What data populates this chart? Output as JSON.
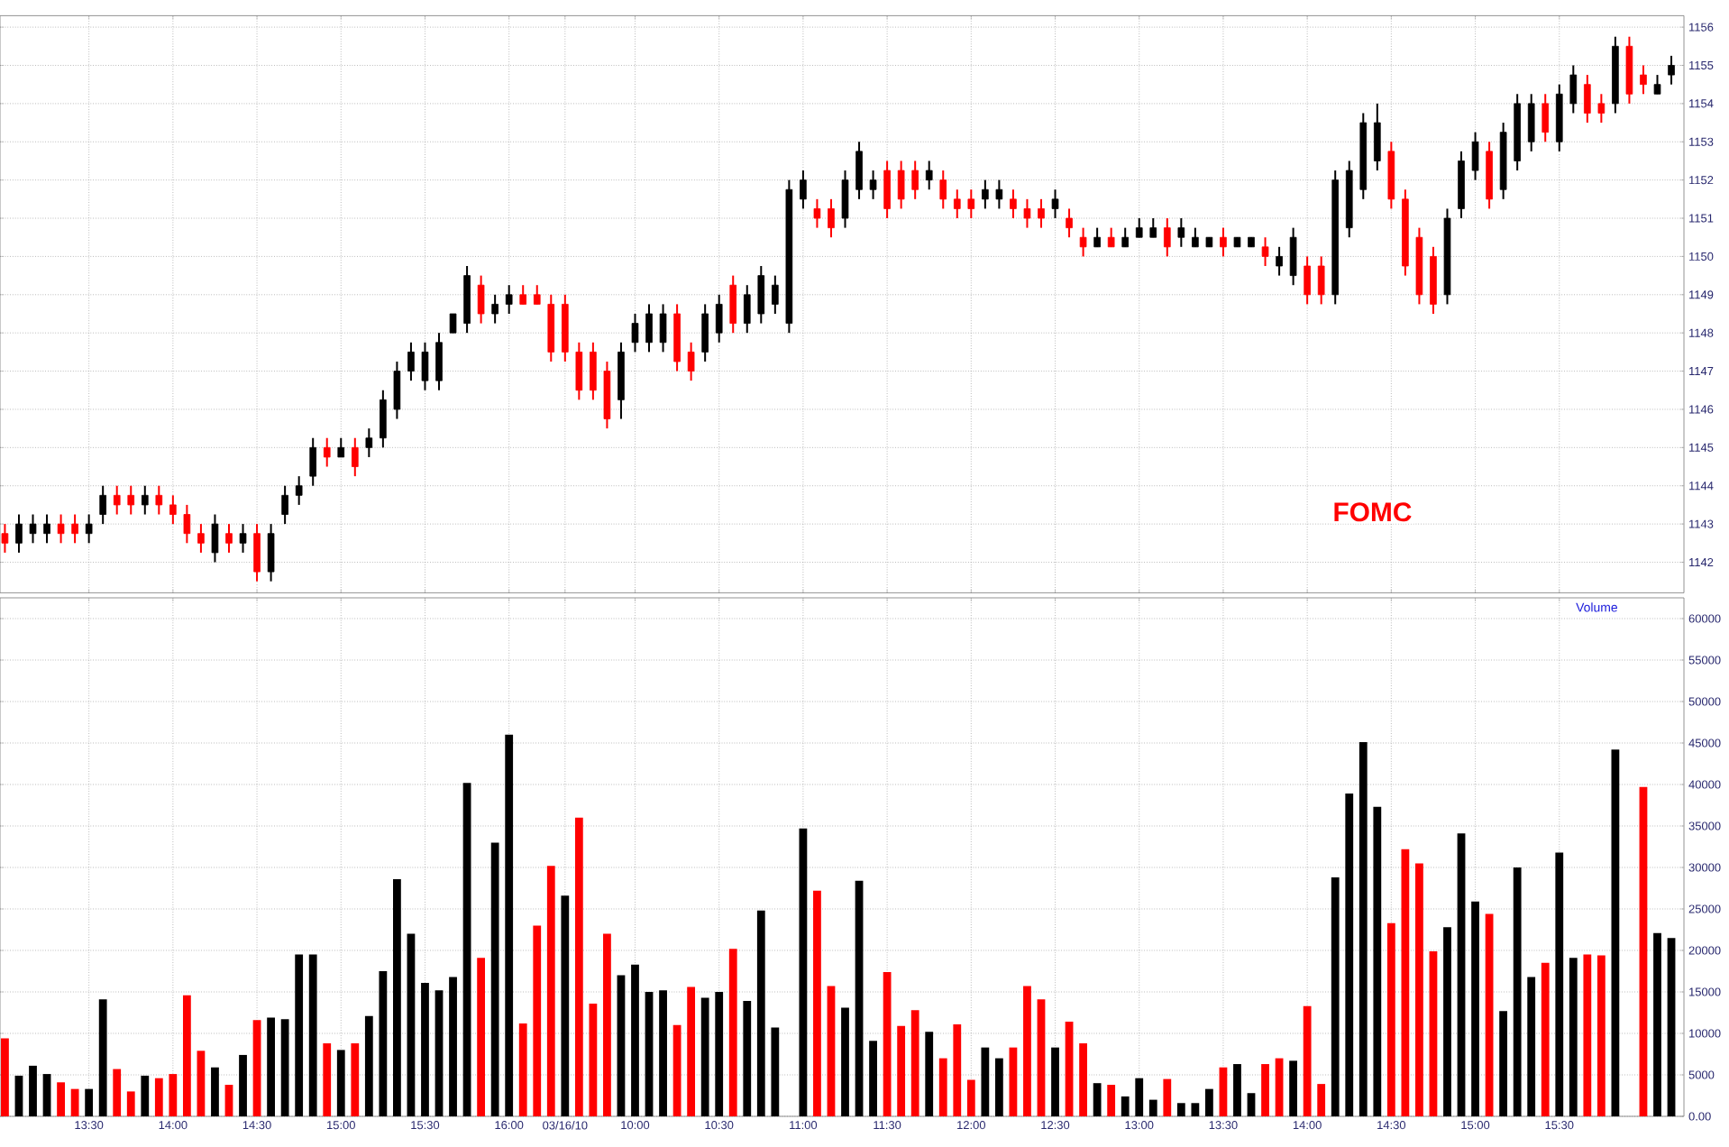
{
  "chart_data": [
    {
      "type": "candlestick",
      "categories": [
        null,
        null,
        null,
        null,
        null,
        null,
        null,
        null,
        null,
        null,
        null,
        null,
        null,
        null,
        null,
        null,
        null,
        null,
        null,
        null,
        null,
        null,
        null,
        null,
        null,
        null,
        null,
        null,
        null,
        null,
        null,
        null,
        null,
        null,
        null,
        null,
        null,
        null,
        null,
        null,
        null,
        null,
        null,
        null,
        null,
        null,
        null,
        null,
        null,
        null,
        null,
        null,
        null,
        null,
        null,
        null,
        null,
        null,
        null,
        null,
        null,
        null,
        null,
        null,
        null,
        null,
        null,
        null,
        null,
        null,
        null,
        null,
        null,
        null,
        null,
        null,
        null,
        null,
        null,
        null,
        null,
        null,
        null,
        null,
        null,
        null,
        null,
        null,
        null,
        null,
        null,
        null,
        null,
        null,
        null,
        null,
        null,
        null,
        null,
        null,
        null,
        null,
        null,
        null,
        null,
        null,
        null,
        null,
        null,
        null,
        null,
        null,
        null,
        null,
        null,
        null,
        null,
        null,
        null,
        null
      ],
      "ohlc": [
        [
          1142.75,
          1143.0,
          1142.25,
          1142.5
        ],
        [
          1142.5,
          1143.25,
          1142.25,
          1143.0
        ],
        [
          1142.75,
          1143.25,
          1142.5,
          1143.0
        ],
        [
          1142.75,
          1143.25,
          1142.5,
          1143.0
        ],
        [
          1143.0,
          1143.25,
          1142.5,
          1142.75
        ],
        [
          1143.0,
          1143.25,
          1142.5,
          1142.75
        ],
        [
          1142.75,
          1143.25,
          1142.5,
          1143.0
        ],
        [
          1143.25,
          1144.0,
          1143.0,
          1143.75
        ],
        [
          1143.75,
          1144.0,
          1143.25,
          1143.5
        ],
        [
          1143.75,
          1144.0,
          1143.25,
          1143.5
        ],
        [
          1143.5,
          1144.0,
          1143.25,
          1143.75
        ],
        [
          1143.75,
          1144.0,
          1143.25,
          1143.5
        ],
        [
          1143.5,
          1143.75,
          1143.0,
          1143.25
        ],
        [
          1143.25,
          1143.5,
          1142.5,
          1142.75
        ],
        [
          1142.75,
          1143.0,
          1142.25,
          1142.5
        ],
        [
          1142.25,
          1143.25,
          1142.0,
          1143.0
        ],
        [
          1142.75,
          1143.0,
          1142.25,
          1142.5
        ],
        [
          1142.5,
          1143.0,
          1142.25,
          1142.75
        ],
        [
          1142.75,
          1143.0,
          1141.5,
          1141.75
        ],
        [
          1141.75,
          1143.0,
          1141.5,
          1142.75
        ],
        [
          1143.25,
          1144.0,
          1143.0,
          1143.75
        ],
        [
          1143.75,
          1144.25,
          1143.5,
          1144.0
        ],
        [
          1144.25,
          1145.25,
          1144.0,
          1145.0
        ],
        [
          1145.0,
          1145.25,
          1144.5,
          1144.75
        ],
        [
          1144.75,
          1145.25,
          1144.75,
          1145.0
        ],
        [
          1145.0,
          1145.25,
          1144.25,
          1144.5
        ],
        [
          1145.0,
          1145.5,
          1144.75,
          1145.25
        ],
        [
          1145.25,
          1146.5,
          1145.0,
          1146.25
        ],
        [
          1146.0,
          1147.25,
          1145.75,
          1147.0
        ],
        [
          1147.0,
          1147.75,
          1146.75,
          1147.5
        ],
        [
          1146.75,
          1147.75,
          1146.5,
          1147.5
        ],
        [
          1146.75,
          1148.0,
          1146.5,
          1147.75
        ],
        [
          1148.0,
          1148.5,
          1148.0,
          1148.5
        ],
        [
          1148.25,
          1149.75,
          1148.0,
          1149.5
        ],
        [
          1149.25,
          1149.5,
          1148.25,
          1148.5
        ],
        [
          1148.5,
          1149.0,
          1148.25,
          1148.75
        ],
        [
          1148.75,
          1149.25,
          1148.5,
          1149.0
        ],
        [
          1149.0,
          1149.25,
          1148.75,
          1148.75
        ],
        [
          1149.0,
          1149.25,
          1148.75,
          1148.75
        ],
        [
          1148.75,
          1149.0,
          1147.25,
          1147.5
        ],
        [
          1148.75,
          1149.0,
          1147.25,
          1147.5
        ],
        [
          1147.5,
          1147.75,
          1146.25,
          1146.5
        ],
        [
          1147.5,
          1147.75,
          1146.25,
          1146.5
        ],
        [
          1147.0,
          1147.25,
          1145.5,
          1145.75
        ],
        [
          1146.25,
          1147.75,
          1145.75,
          1147.5
        ],
        [
          1147.75,
          1148.5,
          1147.5,
          1148.25
        ],
        [
          1147.75,
          1148.75,
          1147.5,
          1148.5
        ],
        [
          1147.75,
          1148.75,
          1147.5,
          1148.5
        ],
        [
          1148.5,
          1148.75,
          1147.0,
          1147.25
        ],
        [
          1147.5,
          1147.75,
          1146.75,
          1147.0
        ],
        [
          1147.5,
          1148.75,
          1147.25,
          1148.5
        ],
        [
          1148.0,
          1149.0,
          1147.75,
          1148.75
        ],
        [
          1149.25,
          1149.5,
          1148.0,
          1148.25
        ],
        [
          1148.25,
          1149.25,
          1148.0,
          1149.0
        ],
        [
          1148.5,
          1149.75,
          1148.25,
          1149.5
        ],
        [
          1148.75,
          1149.5,
          1148.5,
          1149.25
        ],
        [
          1148.25,
          1152.0,
          1148.0,
          1151.75
        ],
        [
          1151.5,
          1152.25,
          1151.25,
          1152.0
        ],
        [
          1151.25,
          1151.5,
          1150.75,
          1151.0
        ],
        [
          1151.25,
          1151.5,
          1150.5,
          1150.75
        ],
        [
          1151.0,
          1152.25,
          1150.75,
          1152.0
        ],
        [
          1151.75,
          1153.0,
          1151.5,
          1152.75
        ],
        [
          1151.75,
          1152.25,
          1151.5,
          1152.0
        ],
        [
          1152.25,
          1152.5,
          1151.0,
          1151.25
        ],
        [
          1152.25,
          1152.5,
          1151.25,
          1151.5
        ],
        [
          1152.25,
          1152.5,
          1151.5,
          1151.75
        ],
        [
          1152.0,
          1152.5,
          1151.75,
          1152.25
        ],
        [
          1152.0,
          1152.25,
          1151.25,
          1151.5
        ],
        [
          1151.5,
          1151.75,
          1151.0,
          1151.25
        ],
        [
          1151.5,
          1151.75,
          1151.0,
          1151.25
        ],
        [
          1151.5,
          1152.0,
          1151.25,
          1151.75
        ],
        [
          1151.5,
          1152.0,
          1151.25,
          1151.75
        ],
        [
          1151.5,
          1151.75,
          1151.0,
          1151.25
        ],
        [
          1151.25,
          1151.5,
          1150.75,
          1151.0
        ],
        [
          1151.25,
          1151.5,
          1150.75,
          1151.0
        ],
        [
          1151.25,
          1151.75,
          1151.0,
          1151.5
        ],
        [
          1151.0,
          1151.25,
          1150.5,
          1150.75
        ],
        [
          1150.5,
          1150.75,
          1150.0,
          1150.25
        ],
        [
          1150.25,
          1150.75,
          1150.25,
          1150.5
        ],
        [
          1150.5,
          1150.75,
          1150.25,
          1150.25
        ],
        [
          1150.25,
          1150.75,
          1150.25,
          1150.5
        ],
        [
          1150.5,
          1151.0,
          1150.5,
          1150.75
        ],
        [
          1150.5,
          1151.0,
          1150.5,
          1150.75
        ],
        [
          1150.75,
          1151.0,
          1150.0,
          1150.25
        ],
        [
          1150.5,
          1151.0,
          1150.25,
          1150.75
        ],
        [
          1150.25,
          1150.75,
          1150.25,
          1150.5
        ],
        [
          1150.25,
          1150.5,
          1150.25,
          1150.5
        ],
        [
          1150.5,
          1150.75,
          1150.0,
          1150.25
        ],
        [
          1150.25,
          1150.5,
          1150.25,
          1150.5
        ],
        [
          1150.25,
          1150.5,
          1150.25,
          1150.5
        ],
        [
          1150.25,
          1150.5,
          1149.75,
          1150.0
        ],
        [
          1149.75,
          1150.25,
          1149.5,
          1150.0
        ],
        [
          1149.5,
          1150.75,
          1149.25,
          1150.5
        ],
        [
          1149.75,
          1150.0,
          1148.75,
          1149.0
        ],
        [
          1149.75,
          1150.0,
          1148.75,
          1149.0
        ],
        [
          1149.0,
          1152.25,
          1148.75,
          1152.0
        ],
        [
          1150.75,
          1152.5,
          1150.5,
          1152.25
        ],
        [
          1151.75,
          1153.75,
          1151.5,
          1153.5
        ],
        [
          1152.5,
          1154.0,
          1152.25,
          1153.5
        ],
        [
          1152.75,
          1153.0,
          1151.25,
          1151.5
        ],
        [
          1151.5,
          1151.75,
          1149.5,
          1149.75
        ],
        [
          1150.5,
          1150.75,
          1148.75,
          1149.0
        ],
        [
          1150.0,
          1150.25,
          1148.5,
          1148.75
        ],
        [
          1149.0,
          1151.25,
          1148.75,
          1151.0
        ],
        [
          1151.25,
          1152.75,
          1151.0,
          1152.5
        ],
        [
          1152.25,
          1153.25,
          1152.0,
          1153.0
        ],
        [
          1152.75,
          1153.0,
          1151.25,
          1151.5
        ],
        [
          1151.75,
          1153.5,
          1151.5,
          1153.25
        ],
        [
          1152.5,
          1154.25,
          1152.25,
          1154.0
        ],
        [
          1153.0,
          1154.25,
          1152.75,
          1154.0
        ],
        [
          1154.0,
          1154.25,
          1153.0,
          1153.25
        ],
        [
          1153.0,
          1154.5,
          1152.75,
          1154.25
        ],
        [
          1154.0,
          1155.0,
          1153.75,
          1154.75
        ],
        [
          1154.5,
          1154.75,
          1153.5,
          1153.75
        ],
        [
          1154.0,
          1154.25,
          1153.5,
          1153.75
        ],
        [
          1154.0,
          1155.75,
          1153.75,
          1155.5
        ],
        [
          1155.5,
          1155.75,
          1154.0,
          1154.25
        ],
        [
          1154.75,
          1155.0,
          1154.25,
          1154.5
        ],
        [
          1154.25,
          1154.75,
          1154.25,
          1154.5
        ],
        [
          1154.75,
          1155.25,
          1154.5,
          1155.0
        ]
      ],
      "colors": [
        "#ff0000",
        "#000000",
        "#000000",
        "#000000",
        "#ff0000",
        "#ff0000",
        "#000000",
        "#000000",
        "#ff0000",
        "#ff0000",
        "#000000",
        "#ff0000",
        "#ff0000",
        "#ff0000",
        "#ff0000",
        "#000000",
        "#ff0000",
        "#000000",
        "#ff0000",
        "#000000",
        "#000000",
        "#000000",
        "#000000",
        "#ff0000",
        "#000000",
        "#ff0000",
        "#000000",
        "#000000",
        "#000000",
        "#000000",
        "#000000",
        "#000000",
        "#000000",
        "#000000",
        "#ff0000",
        "#000000",
        "#000000",
        "#ff0000",
        "#ff0000",
        "#ff0000",
        "#ff0000",
        "#ff0000",
        "#ff0000",
        "#ff0000",
        "#000000",
        "#000000",
        "#000000",
        "#000000",
        "#ff0000",
        "#ff0000",
        "#000000",
        "#000000",
        "#ff0000",
        "#000000",
        "#000000",
        "#000000",
        "#000000",
        "#000000",
        "#ff0000",
        "#ff0000",
        "#000000",
        "#000000",
        "#000000",
        "#ff0000",
        "#ff0000",
        "#ff0000",
        "#000000",
        "#ff0000",
        "#ff0000",
        "#ff0000",
        "#000000",
        "#000000",
        "#ff0000",
        "#ff0000",
        "#ff0000",
        "#000000",
        "#ff0000",
        "#ff0000",
        "#000000",
        "#ff0000",
        "#000000",
        "#000000",
        "#000000",
        "#ff0000",
        "#000000",
        "#000000",
        "#000000",
        "#ff0000",
        "#000000",
        "#000000",
        "#ff0000",
        "#000000",
        "#000000",
        "#ff0000",
        "#ff0000",
        "#000000",
        "#000000",
        "#000000",
        "#000000",
        "#ff0000",
        "#ff0000",
        "#ff0000",
        "#ff0000",
        "#000000",
        "#000000",
        "#000000",
        "#ff0000",
        "#000000",
        "#000000",
        "#000000",
        "#ff0000",
        "#000000",
        "#000000",
        "#ff0000",
        "#ff0000",
        "#000000",
        "#ff0000",
        "#ff0000",
        "#000000",
        "#000000"
      ],
      "ylim": [
        1141.2,
        1156.3
      ],
      "yticks": [
        1142,
        1143,
        1144,
        1145,
        1146,
        1147,
        1148,
        1149,
        1150,
        1151,
        1152,
        1153,
        1154,
        1155,
        1156
      ],
      "grid": true,
      "tick_labels": "y",
      "annotations": [
        "FOMC"
      ]
    },
    {
      "type": "bar",
      "title": "Volume",
      "categories": [
        null,
        null,
        null,
        null,
        null,
        null,
        "13:30",
        null,
        null,
        null,
        null,
        null,
        "14:00",
        null,
        null,
        null,
        null,
        null,
        "14:30",
        null,
        null,
        null,
        null,
        null,
        "15:00",
        null,
        null,
        null,
        null,
        null,
        "15:30",
        null,
        null,
        null,
        null,
        null,
        "16:00",
        null,
        null,
        null,
        "03/16/10",
        null,
        null,
        null,
        null,
        "10:00",
        null,
        null,
        null,
        null,
        null,
        "10:30",
        null,
        null,
        null,
        null,
        null,
        "11:00",
        null,
        null,
        null,
        null,
        null,
        "11:30",
        null,
        null,
        null,
        null,
        null,
        "12:00",
        null,
        null,
        null,
        null,
        null,
        "12:30",
        null,
        null,
        null,
        null,
        null,
        "13:00",
        null,
        null,
        null,
        null,
        null,
        "13:30",
        null,
        null,
        null,
        null,
        null,
        "14:00",
        null,
        null,
        null,
        null,
        null,
        "14:30",
        null,
        null,
        null,
        null,
        null,
        "15:00",
        null,
        null,
        null,
        null,
        null,
        "15:30",
        null,
        null,
        null,
        null,
        null,
        null,
        null,
        null
      ],
      "values": [
        9400,
        4900,
        6100,
        5100,
        4100,
        3300,
        3300,
        14100,
        5700,
        3000,
        4900,
        4600,
        5100,
        14600,
        7900,
        5900,
        3800,
        7400,
        11600,
        11900,
        11700,
        19500,
        19500,
        8800,
        8000,
        8800,
        12100,
        17500,
        28600,
        22000,
        16100,
        15200,
        16800,
        40200,
        19100,
        33000,
        46000,
        11200,
        23000,
        30200,
        26600,
        36000,
        13600,
        22000,
        17000,
        18300,
        15000,
        15200,
        11000,
        15600,
        14300,
        15000,
        20200,
        13900,
        24800,
        10700,
        null,
        34700,
        27200,
        15700,
        13100,
        28400,
        9100,
        17400,
        10900,
        12800,
        10200,
        7000,
        11100,
        4400,
        8300,
        7000,
        8300,
        15700,
        14100,
        8300,
        11400,
        8800,
        4000,
        3800,
        2400,
        4600,
        2000,
        4500,
        1600,
        1600,
        3300,
        5900,
        6300,
        2800,
        6300,
        7000,
        6700,
        13300,
        3900,
        28800,
        38900,
        45100,
        37300,
        23300,
        32200,
        30500,
        19900,
        22800,
        34100,
        25900,
        24400,
        12700,
        30000,
        16800,
        18500,
        31800,
        19100,
        19500,
        19400,
        44200,
        null,
        39700,
        22100,
        21500
      ],
      "colors": [
        "#ff0000",
        "#000000",
        "#000000",
        "#000000",
        "#ff0000",
        "#ff0000",
        "#000000",
        "#000000",
        "#ff0000",
        "#ff0000",
        "#000000",
        "#ff0000",
        "#ff0000",
        "#ff0000",
        "#ff0000",
        "#000000",
        "#ff0000",
        "#000000",
        "#ff0000",
        "#000000",
        "#000000",
        "#000000",
        "#000000",
        "#ff0000",
        "#000000",
        "#ff0000",
        "#000000",
        "#000000",
        "#000000",
        "#000000",
        "#000000",
        "#000000",
        "#000000",
        "#000000",
        "#ff0000",
        "#000000",
        "#000000",
        "#ff0000",
        "#ff0000",
        "#ff0000",
        "#000000",
        "#ff0000",
        "#ff0000",
        "#ff0000",
        "#000000",
        "#000000",
        "#000000",
        "#000000",
        "#ff0000",
        "#ff0000",
        "#000000",
        "#000000",
        "#ff0000",
        "#000000",
        "#000000",
        "#000000",
        "#000000",
        "#000000",
        "#ff0000",
        "#ff0000",
        "#000000",
        "#000000",
        "#000000",
        "#ff0000",
        "#ff0000",
        "#ff0000",
        "#000000",
        "#ff0000",
        "#ff0000",
        "#ff0000",
        "#000000",
        "#000000",
        "#ff0000",
        "#ff0000",
        "#ff0000",
        "#000000",
        "#ff0000",
        "#ff0000",
        "#000000",
        "#ff0000",
        "#000000",
        "#000000",
        "#000000",
        "#ff0000",
        "#000000",
        "#000000",
        "#000000",
        "#ff0000",
        "#000000",
        "#000000",
        "#ff0000",
        "#ff0000",
        "#000000",
        "#ff0000",
        "#ff0000",
        "#000000",
        "#000000",
        "#000000",
        "#000000",
        "#ff0000",
        "#ff0000",
        "#ff0000",
        "#ff0000",
        "#000000",
        "#000000",
        "#000000",
        "#ff0000",
        "#000000",
        "#000000",
        "#000000",
        "#ff0000",
        "#000000",
        "#000000",
        "#ff0000",
        "#ff0000",
        "#000000",
        "#ff0000",
        "#ff0000",
        "#000000",
        "#000000"
      ],
      "ylim": [
        0,
        62500
      ],
      "yticks": [
        {
          "value": 0,
          "label": "0.00"
        },
        5000,
        10000,
        15000,
        20000,
        25000,
        30000,
        35000,
        40000,
        45000,
        50000,
        55000,
        60000
      ],
      "grid": true
    }
  ]
}
